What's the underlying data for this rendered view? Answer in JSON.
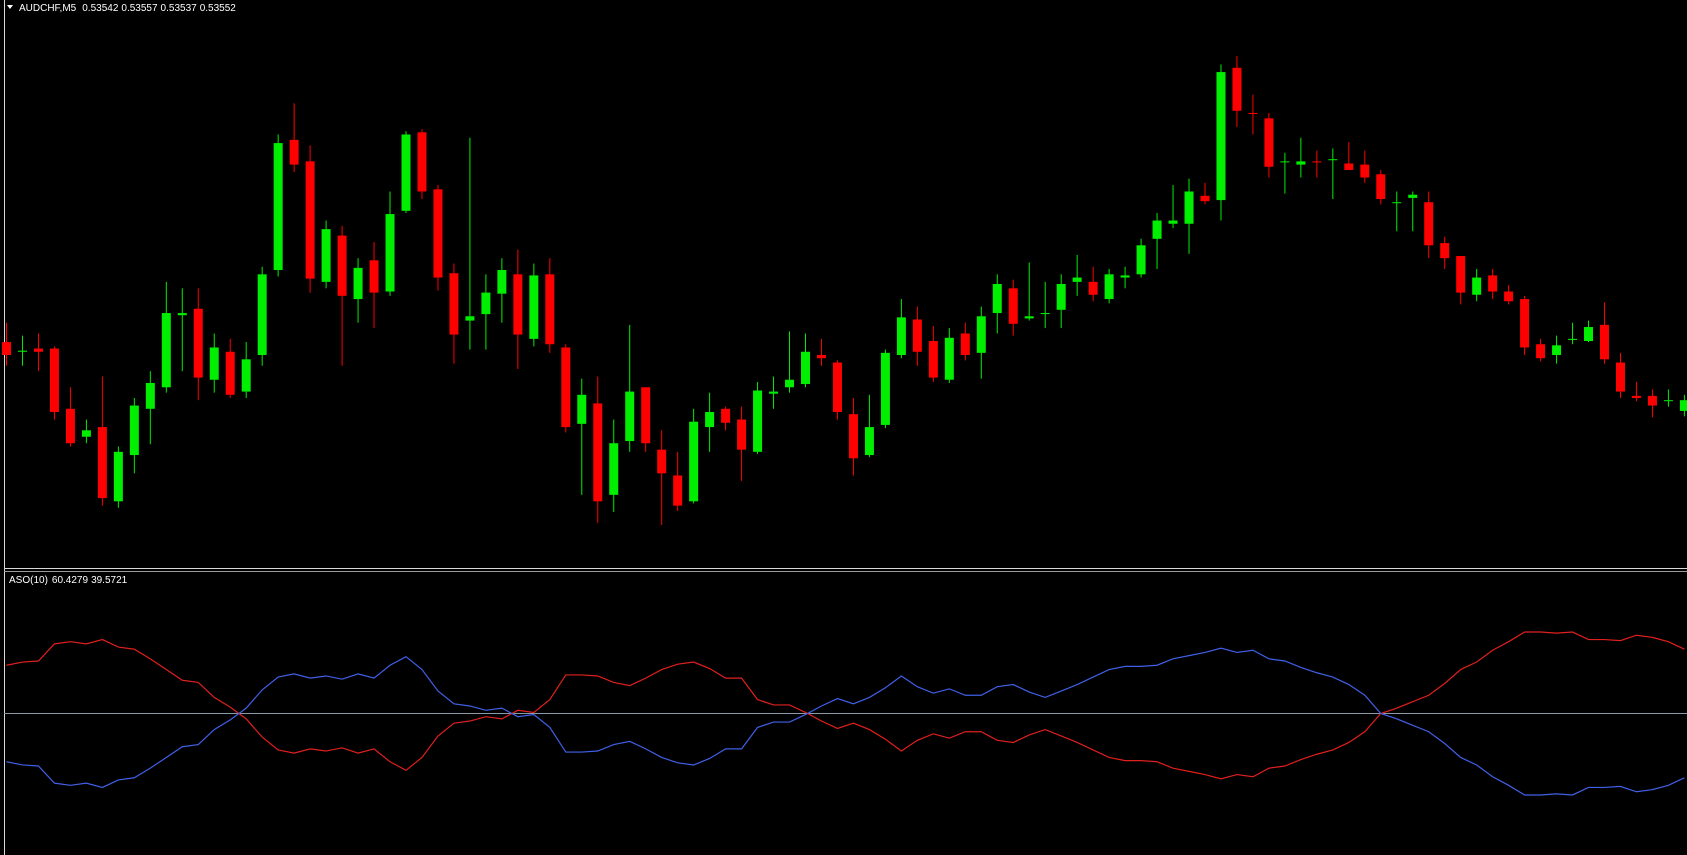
{
  "chart_data": [
    {
      "type": "candlestick",
      "title": "AUDCHF,M5",
      "up_color": "#00ee00",
      "down_color": "#ff0000",
      "ylim": [
        0.53396,
        0.53924
      ],
      "open": [
        0.53606,
        0.53597,
        0.536,
        0.536,
        0.53544,
        0.53518,
        0.53527,
        0.53458,
        0.53501,
        0.53544,
        0.53564,
        0.53631,
        0.53637,
        0.53571,
        0.53597,
        0.5356,
        0.53594,
        0.53673,
        0.53794,
        0.53774,
        0.53662,
        0.53705,
        0.53646,
        0.53682,
        0.53653,
        0.53728,
        0.53801,
        0.53748,
        0.5367,
        0.53626,
        0.53632,
        0.53651,
        0.53669,
        0.53609,
        0.53669,
        0.53601,
        0.5353,
        0.53549,
        0.53464,
        0.53514,
        0.53564,
        0.53506,
        0.53482,
        0.53458,
        0.53527,
        0.53544,
        0.53534,
        0.53504,
        0.53558,
        0.53564,
        0.53567,
        0.53594,
        0.53587,
        0.53539,
        0.53501,
        0.53529,
        0.53594,
        0.53627,
        0.53607,
        0.53571,
        0.53614,
        0.53596,
        0.53633,
        0.53656,
        0.53628,
        0.53632,
        0.53636,
        0.53662,
        0.53662,
        0.53646,
        0.53666,
        0.53669,
        0.53702,
        0.53716,
        0.53716,
        0.53742,
        0.53738,
        0.53861,
        0.53819,
        0.53814,
        0.53774,
        0.53771,
        0.53774,
        0.53776,
        0.53772,
        0.53771,
        0.53762,
        0.53736,
        0.5374,
        0.53736,
        0.53698,
        0.53686,
        0.5365,
        0.53668,
        0.53653,
        0.53646,
        0.53604,
        0.53594,
        0.53608,
        0.53607,
        0.53622,
        0.53587,
        0.53556,
        0.53556,
        0.53552,
        0.53542
      ],
      "high": [
        0.53624,
        0.53612,
        0.53614,
        0.53602,
        0.53564,
        0.53534,
        0.53574,
        0.53509,
        0.53554,
        0.53579,
        0.53662,
        0.53656,
        0.53656,
        0.53614,
        0.53609,
        0.53606,
        0.53676,
        0.53799,
        0.53828,
        0.53789,
        0.53719,
        0.53714,
        0.53684,
        0.53699,
        0.53746,
        0.53802,
        0.53804,
        0.53752,
        0.53679,
        0.53796,
        0.53669,
        0.53684,
        0.53692,
        0.53679,
        0.53684,
        0.53604,
        0.53572,
        0.53574,
        0.53534,
        0.53622,
        0.53564,
        0.53524,
        0.53504,
        0.53544,
        0.53559,
        0.53546,
        0.53546,
        0.53569,
        0.53574,
        0.53616,
        0.53614,
        0.53609,
        0.53589,
        0.53554,
        0.53557,
        0.53599,
        0.53646,
        0.53639,
        0.53621,
        0.53619,
        0.53624,
        0.53639,
        0.53669,
        0.53664,
        0.5368,
        0.53662,
        0.53669,
        0.53687,
        0.53676,
        0.53674,
        0.53676,
        0.53702,
        0.53726,
        0.53752,
        0.53758,
        0.53754,
        0.53864,
        0.53872,
        0.53836,
        0.53819,
        0.53782,
        0.53796,
        0.53784,
        0.53786,
        0.53792,
        0.53784,
        0.53766,
        0.53746,
        0.53746,
        0.53746,
        0.53704,
        0.53686,
        0.53674,
        0.53674,
        0.53659,
        0.53649,
        0.53609,
        0.53612,
        0.53624,
        0.53626,
        0.53643,
        0.53596,
        0.53569,
        0.53562,
        0.53562,
        0.53557
      ],
      "low": [
        0.53584,
        0.53584,
        0.53579,
        0.53534,
        0.53509,
        0.53512,
        0.53454,
        0.53452,
        0.53484,
        0.53511,
        0.53559,
        0.53579,
        0.53552,
        0.53559,
        0.53554,
        0.53554,
        0.53584,
        0.53667,
        0.53764,
        0.53652,
        0.53656,
        0.53584,
        0.53624,
        0.53619,
        0.53649,
        0.53726,
        0.53739,
        0.53654,
        0.53586,
        0.53599,
        0.53599,
        0.53624,
        0.53581,
        0.53602,
        0.53596,
        0.53522,
        0.53464,
        0.53438,
        0.53448,
        0.53504,
        0.53504,
        0.53436,
        0.53449,
        0.53456,
        0.53504,
        0.53524,
        0.53477,
        0.53502,
        0.53544,
        0.53559,
        0.53564,
        0.53584,
        0.53534,
        0.53482,
        0.53499,
        0.53526,
        0.53591,
        0.53584,
        0.53569,
        0.53568,
        0.53589,
        0.53572,
        0.53614,
        0.53612,
        0.53626,
        0.53619,
        0.53619,
        0.53649,
        0.53644,
        0.53642,
        0.53656,
        0.53666,
        0.53674,
        0.53712,
        0.53688,
        0.53734,
        0.53719,
        0.53806,
        0.53799,
        0.53759,
        0.53744,
        0.53759,
        0.53759,
        0.53739,
        0.53766,
        0.53754,
        0.53734,
        0.53709,
        0.53709,
        0.53684,
        0.53674,
        0.53641,
        0.53644,
        0.53646,
        0.53641,
        0.53594,
        0.53588,
        0.53586,
        0.53604,
        0.53606,
        0.53586,
        0.53554,
        0.53551,
        0.53536,
        0.53546,
        0.53537
      ],
      "close": [
        0.53594,
        0.53598,
        0.53597,
        0.53541,
        0.53512,
        0.53524,
        0.53461,
        0.53504,
        0.53547,
        0.53568,
        0.53633,
        0.53633,
        0.53573,
        0.53601,
        0.53557,
        0.5359,
        0.53669,
        0.53791,
        0.53771,
        0.53665,
        0.53711,
        0.53649,
        0.53675,
        0.53652,
        0.53725,
        0.53799,
        0.53746,
        0.53666,
        0.53613,
        0.5363,
        0.53652,
        0.53673,
        0.53613,
        0.53668,
        0.53604,
        0.53527,
        0.53557,
        0.53458,
        0.53512,
        0.5356,
        0.53512,
        0.53484,
        0.53454,
        0.53532,
        0.53541,
        0.53531,
        0.53506,
        0.53561,
        0.5356,
        0.53571,
        0.53597,
        0.53591,
        0.53541,
        0.53498,
        0.53527,
        0.53596,
        0.53629,
        0.53597,
        0.53573,
        0.5361,
        0.53594,
        0.5363,
        0.5366,
        0.53623,
        0.5363,
        0.53633,
        0.5366,
        0.53666,
        0.5365,
        0.53669,
        0.53668,
        0.53696,
        0.53719,
        0.53719,
        0.53746,
        0.53737,
        0.53857,
        0.53821,
        0.53818,
        0.53769,
        0.53774,
        0.53774,
        0.53773,
        0.53776,
        0.53766,
        0.53759,
        0.53739,
        0.53736,
        0.53743,
        0.53696,
        0.53684,
        0.53652,
        0.53666,
        0.53653,
        0.53644,
        0.53601,
        0.53591,
        0.53603,
        0.53609,
        0.5362,
        0.5359,
        0.5356,
        0.53554,
        0.53547,
        0.53552,
        0.53552
      ]
    },
    {
      "type": "line",
      "title": "ASO(10)",
      "ylim": [
        27.04,
        72.96
      ],
      "level": 50,
      "level_color": "#8a9aa8",
      "series": [
        {
          "color": "#e0201c",
          "values": [
            57.83,
            58.35,
            58.52,
            61.3,
            61.65,
            61.3,
            62.0,
            60.78,
            60.43,
            58.87,
            57.13,
            55.39,
            55.04,
            52.61,
            51.04,
            49.13,
            46.17,
            44.09,
            43.57,
            44.26,
            43.91,
            44.43,
            43.57,
            44.26,
            42.17,
            40.78,
            42.87,
            46.35,
            48.43,
            48.78,
            49.48,
            49.13,
            50.52,
            50.17,
            52.26,
            56.26,
            56.26,
            56.09,
            55.04,
            54.52,
            55.74,
            57.13,
            58.0,
            58.35,
            57.3,
            55.74,
            55.74,
            52.26,
            51.39,
            51.39,
            50.17,
            48.78,
            47.57,
            48.43,
            47.39,
            45.83,
            43.91,
            45.65,
            46.7,
            46.0,
            47.04,
            47.04,
            45.65,
            45.3,
            46.52,
            47.39,
            46.35,
            45.3,
            44.09,
            42.87,
            42.35,
            42.35,
            42.17,
            41.13,
            40.61,
            40.09,
            39.39,
            40.09,
            39.74,
            41.13,
            41.48,
            42.52,
            43.39,
            44.09,
            45.3,
            47.04,
            50.0,
            50.87,
            51.91,
            52.96,
            54.87,
            57.13,
            58.35,
            60.26,
            61.65,
            63.22,
            63.22,
            63.04,
            63.22,
            62.0,
            62.0,
            61.83,
            62.7,
            62.35,
            61.65,
            60.4279
          ]
        },
        {
          "color": "#4060e8",
          "values": [
            42.17,
            41.65,
            41.48,
            38.7,
            38.35,
            38.7,
            38.0,
            39.22,
            39.57,
            41.13,
            42.87,
            44.61,
            44.96,
            47.39,
            48.96,
            50.87,
            53.83,
            55.91,
            56.43,
            55.74,
            56.09,
            55.57,
            56.43,
            55.74,
            57.83,
            59.22,
            57.13,
            53.65,
            51.57,
            51.22,
            50.52,
            50.87,
            49.48,
            49.83,
            47.74,
            43.74,
            43.74,
            43.91,
            44.96,
            45.48,
            44.26,
            42.87,
            42.0,
            41.65,
            42.7,
            44.26,
            44.26,
            47.74,
            48.61,
            48.61,
            49.83,
            51.22,
            52.43,
            51.57,
            52.61,
            54.17,
            56.09,
            54.35,
            53.3,
            54.0,
            52.96,
            52.96,
            54.35,
            54.7,
            53.48,
            52.61,
            53.65,
            54.7,
            55.91,
            57.13,
            57.65,
            57.65,
            57.83,
            58.87,
            59.39,
            59.91,
            60.61,
            59.91,
            60.26,
            58.87,
            58.52,
            57.48,
            56.61,
            55.91,
            54.7,
            52.96,
            50.0,
            49.13,
            48.09,
            47.04,
            45.13,
            42.87,
            41.65,
            39.74,
            38.35,
            36.78,
            36.78,
            36.96,
            36.78,
            38.0,
            38.0,
            38.17,
            37.3,
            37.65,
            38.35,
            39.5721
          ]
        }
      ]
    }
  ]
}
